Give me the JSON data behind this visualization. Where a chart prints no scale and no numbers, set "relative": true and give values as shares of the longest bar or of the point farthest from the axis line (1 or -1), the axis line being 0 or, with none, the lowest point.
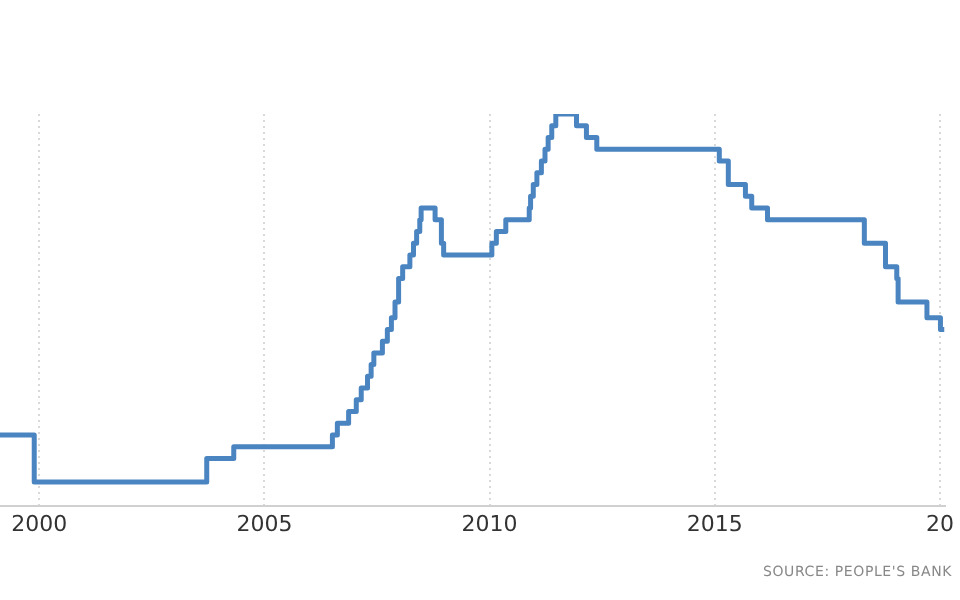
{
  "chart_data": {
    "type": "step",
    "relative": true,
    "legend": false,
    "grid": "x",
    "marker": "none",
    "line_style": "solid",
    "annotations": [
      "SOURCE: PEOPLE'S BANK"
    ],
    "xlim": [
      1999.13,
      2020.1
    ],
    "xticks": [
      2000,
      2005,
      2010,
      2015,
      {
        "value": 2020,
        "label": "20"
      }
    ],
    "series": [
      {
        "color": "#4a84c1",
        "x": [
          1999.13,
          1999.89,
          2003.72,
          2004.32,
          2006.51,
          2006.62,
          2006.87,
          2007.04,
          2007.15,
          2007.29,
          2007.37,
          2007.43,
          2007.62,
          2007.73,
          2007.82,
          2007.9,
          2007.98,
          2008.07,
          2008.23,
          2008.31,
          2008.38,
          2008.45,
          2008.48,
          2008.79,
          2008.93,
          2008.98,
          2010.05,
          2010.15,
          2010.36,
          2010.88,
          2010.91,
          2010.97,
          2011.05,
          2011.15,
          2011.23,
          2011.3,
          2011.38,
          2011.47,
          2011.93,
          2012.15,
          2012.38,
          2015.1,
          2015.3,
          2015.68,
          2015.82,
          2016.17,
          2018.32,
          2018.79,
          2019.04,
          2019.07,
          2019.71,
          2020.01,
          2020.1
        ],
        "values": [
          0.18,
          0.06,
          0.12,
          0.15,
          0.18,
          0.21,
          0.24,
          0.27,
          0.3,
          0.33,
          0.36,
          0.39,
          0.42,
          0.45,
          0.48,
          0.52,
          0.58,
          0.61,
          0.64,
          0.67,
          0.7,
          0.73,
          0.76,
          0.73,
          0.67,
          0.64,
          0.67,
          0.7,
          0.73,
          0.76,
          0.79,
          0.82,
          0.85,
          0.88,
          0.91,
          0.94,
          0.97,
          1,
          0.97,
          0.94,
          0.91,
          0.88,
          0.82,
          0.79,
          0.76,
          0.73,
          0.67,
          0.61,
          0.58,
          0.52,
          0.48,
          0.45,
          0.45
        ]
      }
    ]
  }
}
